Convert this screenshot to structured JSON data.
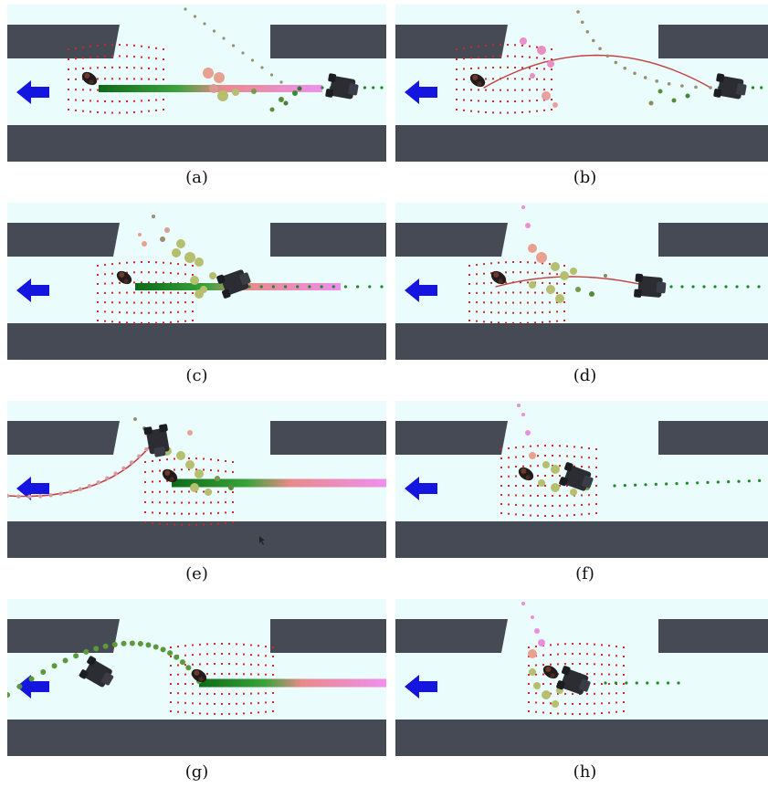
{
  "figure": {
    "panels": [
      {
        "label": "(a)",
        "scene": "a"
      },
      {
        "label": "(b)",
        "scene": "b"
      },
      {
        "label": "(c)",
        "scene": "c"
      },
      {
        "label": "(d)",
        "scene": "d"
      },
      {
        "label": "(e)",
        "scene": "e"
      },
      {
        "label": "(f)",
        "scene": "f"
      },
      {
        "label": "(g)",
        "scene": "g"
      },
      {
        "label": "(h)",
        "scene": "h"
      }
    ]
  },
  "colors": {
    "floor": "#eafcfb",
    "wall": "#454a54",
    "goal_arrow": "#1515e0",
    "goal_grid": "#cc2a2a",
    "path_green": "#1e8a2a",
    "path_pink": "#ee90ee",
    "predicted_ball": "#b5bf6e",
    "robot": "#2b2d33"
  },
  "icons": {
    "goal": "goal-arrow-icon",
    "robot": "robot-icon",
    "person": "person-icon",
    "cursor": "mouse-pointer-icon"
  }
}
